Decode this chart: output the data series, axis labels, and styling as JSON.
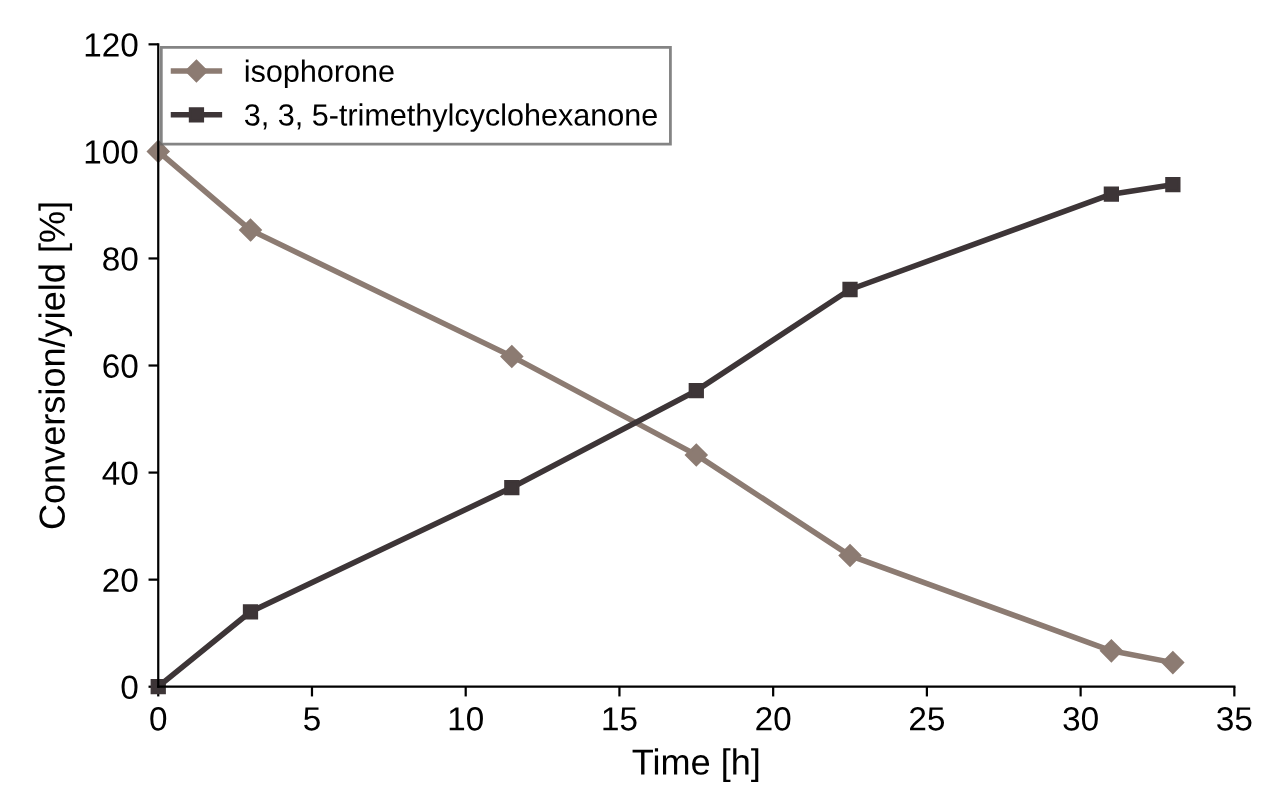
{
  "chart_data": {
    "type": "line",
    "xlabel": "Time [h]",
    "ylabel": "Conversion/yield [%]",
    "xlim": [
      0,
      35
    ],
    "xticks": [
      0,
      5,
      10,
      15,
      20,
      25,
      30,
      35
    ],
    "ylim": [
      0,
      120
    ],
    "yticks": [
      0,
      20,
      40,
      60,
      80,
      100,
      120
    ],
    "grid": false,
    "legend": "top left",
    "series": [
      {
        "name": "isophorone",
        "color": "#8c7b72",
        "marker": "diamond",
        "x": [
          0,
          3,
          11.5,
          17.5,
          22.5,
          31,
          33
        ],
        "values": [
          100,
          85.3,
          61.7,
          43.3,
          24.5,
          6.7,
          4.5
        ]
      },
      {
        "name": "3, 3, 5-trimethylcyclohexanone",
        "color": "#3d3537",
        "marker": "square",
        "x": [
          0,
          3,
          11.5,
          17.5,
          22.5,
          31,
          33
        ],
        "values": [
          0,
          14,
          37.2,
          55.3,
          74.2,
          92,
          93.8
        ]
      }
    ]
  }
}
